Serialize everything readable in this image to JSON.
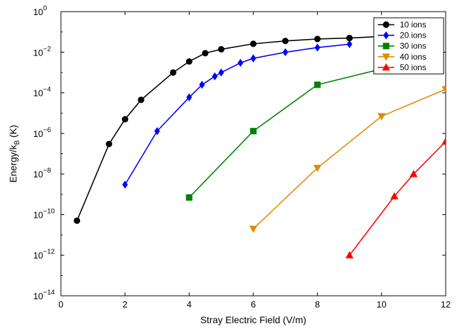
{
  "chart_data": {
    "type": "line",
    "xlabel": "Stray Electric Field (V/m)",
    "ylabel_main": "Energy/k",
    "ylabel_sub": "B",
    "ylabel_tail": " (K)",
    "x_scale": "linear",
    "y_scale": "log",
    "xlim": [
      0,
      12
    ],
    "ylim": [
      1e-14,
      1
    ],
    "x_ticks": [
      0,
      2,
      4,
      6,
      8,
      10,
      12
    ],
    "x_tick_labels": [
      "0",
      "2",
      "4",
      "6",
      "8",
      "10",
      "12"
    ],
    "y_ticks": [
      1e-14,
      1e-12,
      1e-10,
      1e-08,
      1e-06,
      0.0001,
      0.01,
      1
    ],
    "y_tick_labels": [
      {
        "base": "10",
        "exp": "−14"
      },
      {
        "base": "10",
        "exp": "−12"
      },
      {
        "base": "10",
        "exp": "−10"
      },
      {
        "base": "10",
        "exp": "−8"
      },
      {
        "base": "10",
        "exp": "−6"
      },
      {
        "base": "10",
        "exp": "−4"
      },
      {
        "base": "10",
        "exp": "−2"
      },
      {
        "base": "10",
        "exp": "0"
      }
    ],
    "grid": false,
    "legend_position": "top-right",
    "series": [
      {
        "name": "10 ions",
        "color": "#000000",
        "marker": "circle",
        "x": [
          0.5,
          1.5,
          2,
          2.5,
          3.5,
          4,
          4.5,
          5,
          6,
          7,
          8,
          9,
          10
        ],
        "y": [
          5e-11,
          3e-07,
          5e-06,
          4.5e-05,
          0.001,
          0.0035,
          0.009,
          0.014,
          0.026,
          0.036,
          0.045,
          0.05,
          0.06
        ]
      },
      {
        "name": "20 ions",
        "color": "#0000ff",
        "marker": "diamond",
        "x": [
          2,
          3,
          4,
          4.4,
          4.8,
          5,
          5.6,
          6,
          7,
          8,
          9
        ],
        "y": [
          3e-09,
          1.3e-06,
          6e-05,
          0.00025,
          0.00065,
          0.001,
          0.003,
          0.005,
          0.01,
          0.017,
          0.025
        ]
      },
      {
        "name": "30 ions",
        "color": "#008000",
        "marker": "square",
        "x": [
          4,
          6,
          8,
          10
        ],
        "y": [
          7e-10,
          1.3e-06,
          0.00025,
          0.0015
        ]
      },
      {
        "name": "40 ions",
        "color": "#e08a00",
        "marker": "triangle-down",
        "x": [
          6,
          8,
          10,
          12
        ],
        "y": [
          2e-11,
          2e-08,
          7e-06,
          0.00015
        ]
      },
      {
        "name": "50 ions",
        "color": "#ff0000",
        "marker": "triangle-up",
        "x": [
          9,
          10.4,
          11,
          12
        ],
        "y": [
          1e-12,
          8e-10,
          1e-08,
          4e-07
        ]
      }
    ]
  }
}
